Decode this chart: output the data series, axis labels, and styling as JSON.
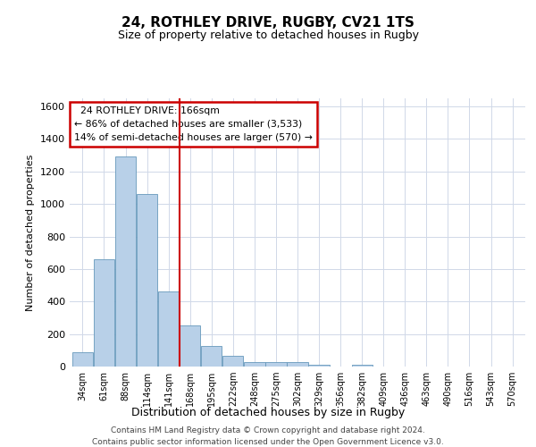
{
  "title": "24, ROTHLEY DRIVE, RUGBY, CV21 1TS",
  "subtitle": "Size of property relative to detached houses in Rugby",
  "xlabel": "Distribution of detached houses by size in Rugby",
  "ylabel": "Number of detached properties",
  "footnote1": "Contains HM Land Registry data © Crown copyright and database right 2024.",
  "footnote2": "Contains public sector information licensed under the Open Government Licence v3.0.",
  "bin_labels": [
    "34sqm",
    "61sqm",
    "88sqm",
    "114sqm",
    "141sqm",
    "168sqm",
    "195sqm",
    "222sqm",
    "248sqm",
    "275sqm",
    "302sqm",
    "329sqm",
    "356sqm",
    "382sqm",
    "409sqm",
    "436sqm",
    "463sqm",
    "490sqm",
    "516sqm",
    "543sqm",
    "570sqm"
  ],
  "bar_values": [
    90,
    660,
    1290,
    1060,
    460,
    255,
    125,
    65,
    30,
    30,
    30,
    10,
    0,
    10,
    0,
    0,
    0,
    0,
    0,
    0,
    0
  ],
  "bar_color": "#b8d0e8",
  "bar_edge_color": "#6699bb",
  "highlight_line_color": "#cc0000",
  "annotation_text": "  24 ROTHLEY DRIVE: 166sqm\n← 86% of detached houses are smaller (3,533)\n14% of semi-detached houses are larger (570) →",
  "annotation_box_color": "#cc0000",
  "ylim": [
    0,
    1650
  ],
  "yticks": [
    0,
    200,
    400,
    600,
    800,
    1000,
    1200,
    1400,
    1600
  ],
  "background_color": "#ffffff",
  "grid_color": "#d0d8e8",
  "n_bins": 21,
  "highlight_bin_index": 5
}
